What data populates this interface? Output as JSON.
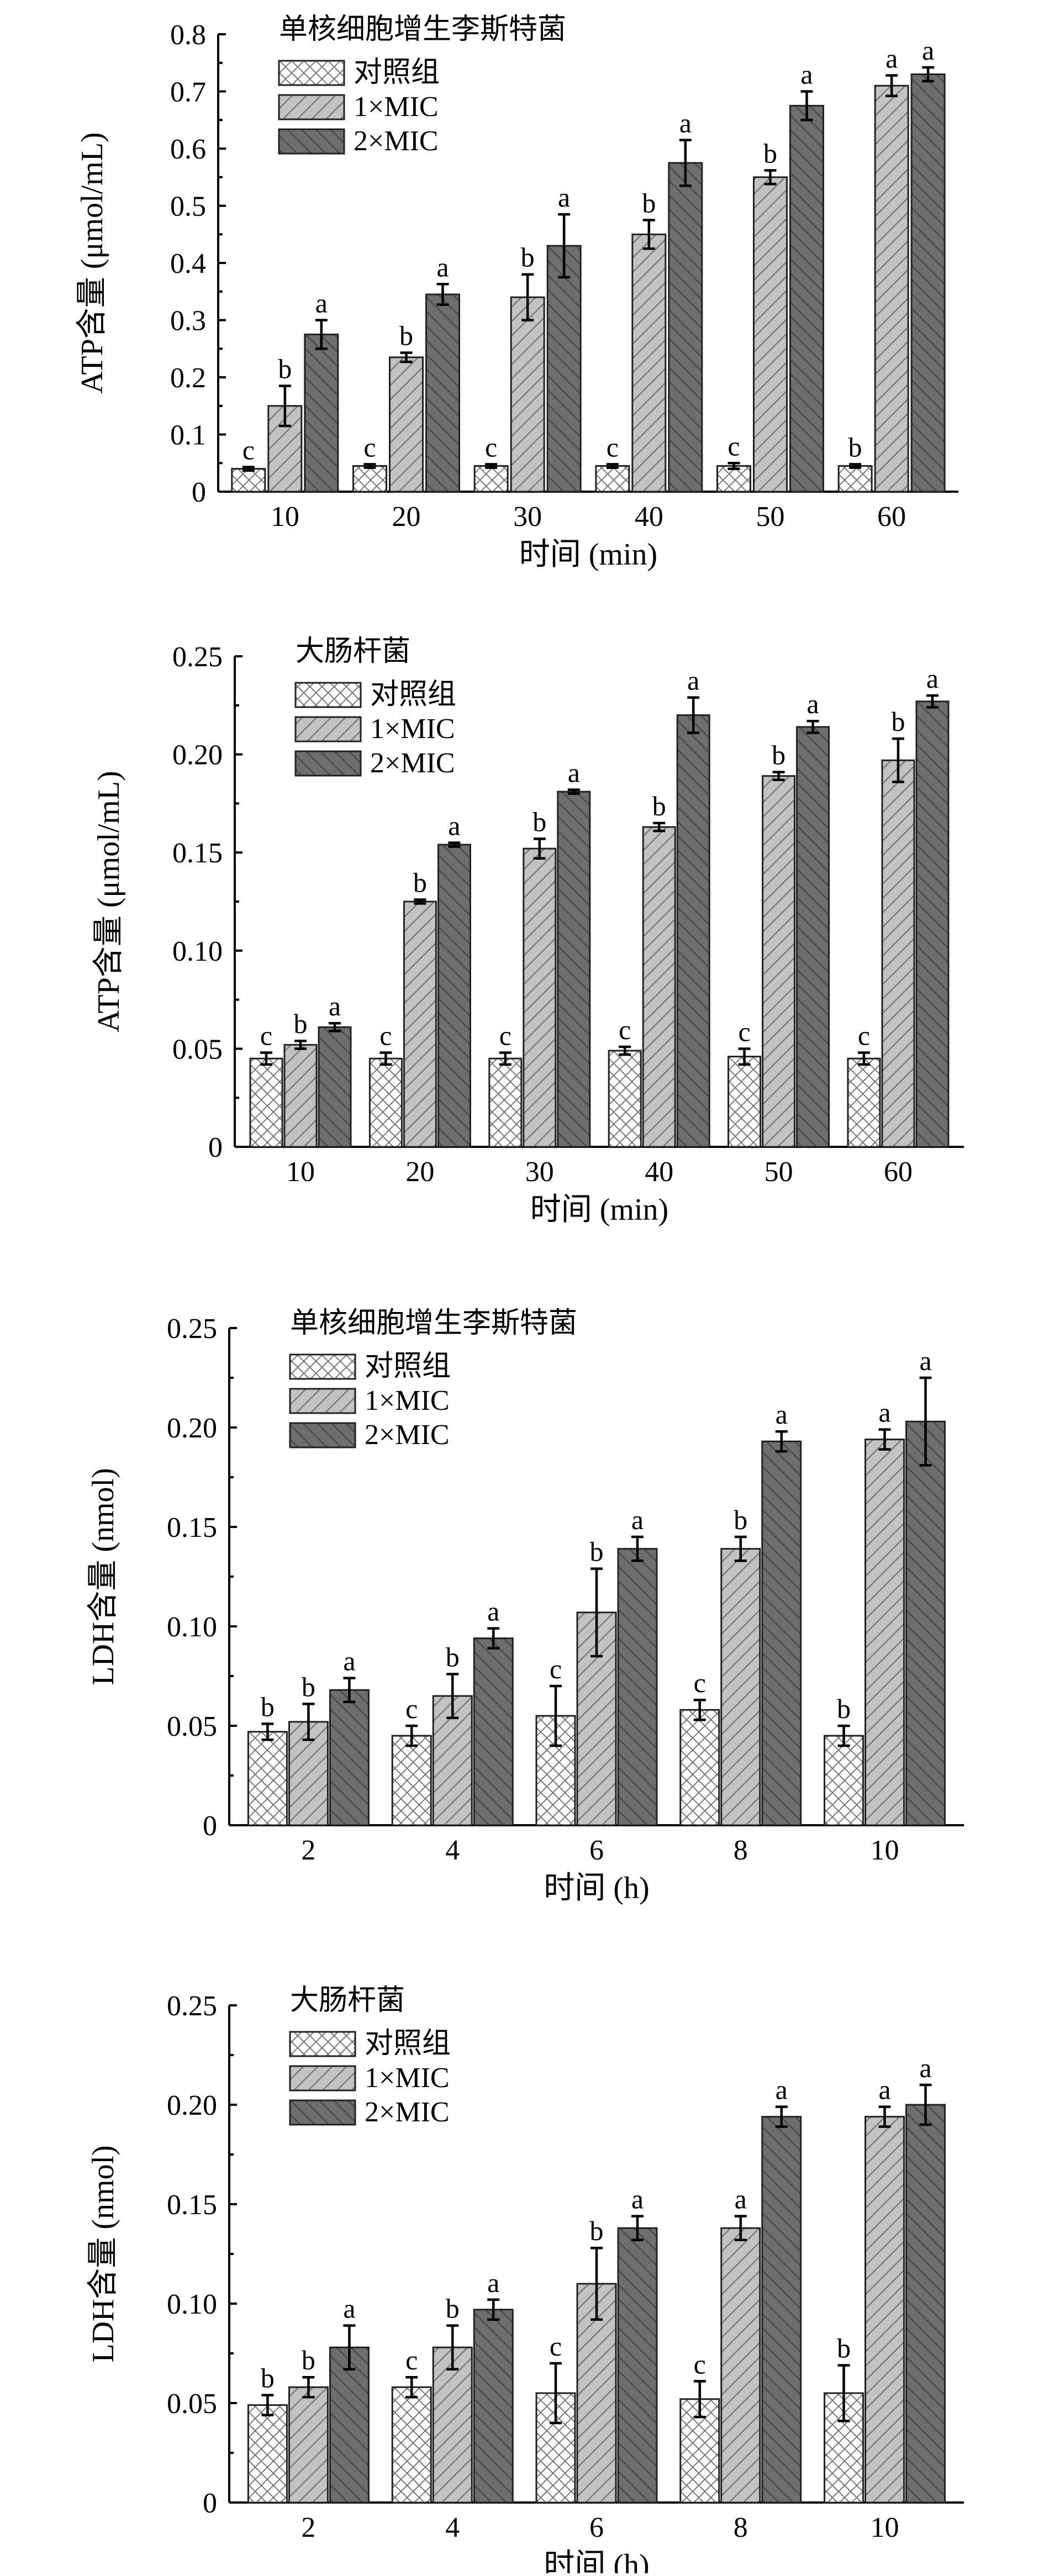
{
  "chart_data": [
    {
      "type": "bar",
      "title": "单核细胞增生李斯特菌",
      "xlabel": "时间 (min)",
      "ylabel": "ATP含量 (μmol/mL)",
      "categories": [
        "10",
        "20",
        "30",
        "40",
        "50",
        "60"
      ],
      "ylim": [
        0,
        0.8
      ],
      "yticks": [
        "0",
        "0.1",
        "0.2",
        "0.3",
        "0.4",
        "0.5",
        "0.6",
        "0.7",
        "0.8"
      ],
      "legend_position": "top-left",
      "series": [
        {
          "name": "对照组",
          "values": [
            0.04,
            0.045,
            0.045,
            0.045,
            0.045,
            0.045
          ],
          "errors": [
            0.003,
            0.003,
            0.003,
            0.003,
            0.005,
            0.003
          ],
          "letters": [
            "c",
            "c",
            "c",
            "c",
            "c",
            "b"
          ]
        },
        {
          "name": "1×MIC",
          "values": [
            0.15,
            0.235,
            0.34,
            0.45,
            0.55,
            0.71
          ],
          "errors": [
            0.035,
            0.008,
            0.04,
            0.025,
            0.012,
            0.018
          ],
          "letters": [
            "b",
            "b",
            "b",
            "b",
            "b",
            "a"
          ]
        },
        {
          "name": "2×MIC",
          "values": [
            0.275,
            0.345,
            0.43,
            0.575,
            0.675,
            0.73
          ],
          "errors": [
            0.025,
            0.018,
            0.055,
            0.04,
            0.025,
            0.012
          ],
          "letters": [
            "a",
            "a",
            "a",
            "a",
            "a",
            "a"
          ]
        }
      ]
    },
    {
      "type": "bar",
      "title": "大肠杆菌",
      "xlabel": "时间 (min)",
      "ylabel": "ATP含量 (μmol/mL)",
      "categories": [
        "10",
        "20",
        "30",
        "40",
        "50",
        "60"
      ],
      "ylim": [
        0,
        0.25
      ],
      "yticks": [
        "0",
        "0.05",
        "0.10",
        "0.15",
        "0.20",
        "0.25"
      ],
      "legend_position": "top-left",
      "series": [
        {
          "name": "对照组",
          "values": [
            0.045,
            0.045,
            0.045,
            0.049,
            0.046,
            0.045
          ],
          "errors": [
            0.003,
            0.003,
            0.003,
            0.002,
            0.004,
            0.003
          ],
          "letters": [
            "c",
            "c",
            "c",
            "c",
            "c",
            "c"
          ]
        },
        {
          "name": "1×MIC",
          "values": [
            0.052,
            0.125,
            0.152,
            0.163,
            0.189,
            0.197
          ],
          "errors": [
            0.002,
            0.001,
            0.005,
            0.002,
            0.002,
            0.011
          ],
          "letters": [
            "b",
            "b",
            "b",
            "b",
            "b",
            "b"
          ]
        },
        {
          "name": "2×MIC",
          "values": [
            0.061,
            0.154,
            0.181,
            0.22,
            0.214,
            0.227
          ],
          "errors": [
            0.002,
            0.001,
            0.001,
            0.009,
            0.003,
            0.003
          ],
          "letters": [
            "a",
            "a",
            "a",
            "a",
            "a",
            "a"
          ]
        }
      ]
    },
    {
      "type": "bar",
      "title": "单核细胞增生李斯特菌",
      "xlabel": "时间 (h)",
      "ylabel": "LDH含量 (nmol)",
      "categories": [
        "2",
        "4",
        "6",
        "8",
        "10"
      ],
      "ylim": [
        0,
        0.25
      ],
      "yticks": [
        "0",
        "0.05",
        "0.10",
        "0.15",
        "0.20",
        "0.25"
      ],
      "legend_position": "top-left",
      "series": [
        {
          "name": "对照组",
          "values": [
            0.047,
            0.045,
            0.055,
            0.058,
            0.045
          ],
          "errors": [
            0.004,
            0.005,
            0.015,
            0.005,
            0.005
          ],
          "letters": [
            "b",
            "c",
            "c",
            "c",
            "b"
          ]
        },
        {
          "name": "1×MIC",
          "values": [
            0.052,
            0.065,
            0.107,
            0.139,
            0.194
          ],
          "errors": [
            0.009,
            0.011,
            0.022,
            0.006,
            0.005
          ],
          "letters": [
            "b",
            "b",
            "b",
            "b",
            "a"
          ]
        },
        {
          "name": "2×MIC",
          "values": [
            0.068,
            0.094,
            0.139,
            0.193,
            0.203
          ],
          "errors": [
            0.006,
            0.005,
            0.006,
            0.005,
            0.022
          ],
          "letters": [
            "a",
            "a",
            "a",
            "a",
            "a"
          ]
        }
      ]
    },
    {
      "type": "bar",
      "title": "大肠杆菌",
      "xlabel": "时间 (h)",
      "ylabel": "LDH含量 (nmol)",
      "categories": [
        "2",
        "4",
        "6",
        "8",
        "10"
      ],
      "ylim": [
        0,
        0.25
      ],
      "yticks": [
        "0",
        "0.05",
        "0.10",
        "0.15",
        "0.20",
        "0.25"
      ],
      "legend_position": "top-left",
      "series": [
        {
          "name": "对照组",
          "values": [
            0.049,
            0.058,
            0.055,
            0.052,
            0.055
          ],
          "errors": [
            0.005,
            0.005,
            0.015,
            0.009,
            0.014
          ],
          "letters": [
            "b",
            "c",
            "c",
            "c",
            "b"
          ]
        },
        {
          "name": "1×MIC",
          "values": [
            0.058,
            0.078,
            0.11,
            0.138,
            0.194
          ],
          "errors": [
            0.005,
            0.011,
            0.018,
            0.006,
            0.005
          ],
          "letters": [
            "b",
            "b",
            "b",
            "a",
            "a"
          ]
        },
        {
          "name": "2×MIC",
          "values": [
            0.078,
            0.097,
            0.138,
            0.194,
            0.2
          ],
          "errors": [
            0.011,
            0.005,
            0.006,
            0.005,
            0.01
          ],
          "letters": [
            "a",
            "a",
            "a",
            "a",
            "a"
          ]
        }
      ]
    }
  ]
}
